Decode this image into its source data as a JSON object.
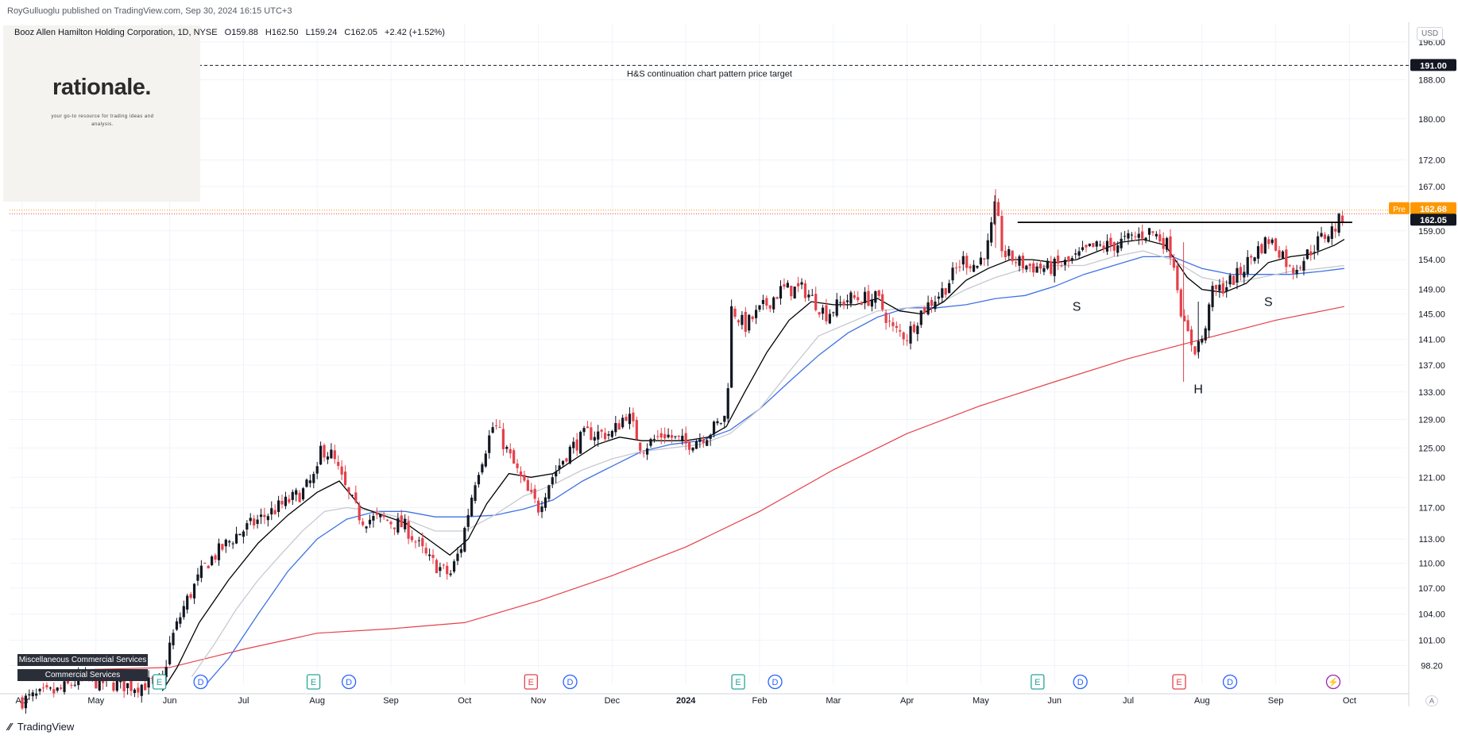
{
  "header": {
    "publisher": "RoyGulluoglu published on TradingView.com, Sep 30, 2024 16:15 UTC+3"
  },
  "legend": {
    "symbol": "Booz Allen Hamilton Holding Corporation, 1D, NYSE",
    "open": "O159.88",
    "high": "H162.50",
    "low": "L159.24",
    "close": "C162.05",
    "change": "+2.42 (+1.52%)"
  },
  "logo": {
    "brand": "rationale.",
    "tagline": "your go-to resource for trading ideas and analysis."
  },
  "currency_button": "USD",
  "auto_button": "A",
  "sector_tags": [
    "Miscellaneous Commercial Services",
    "Commercial Services"
  ],
  "footer": {
    "brand": "TradingView"
  },
  "chart_data": {
    "type": "candlestick",
    "title": "",
    "y_axis": {
      "ticks": [
        98.2,
        101.0,
        104.0,
        107.0,
        110.0,
        113.0,
        117.0,
        121.0,
        125.0,
        129.0,
        133.0,
        137.0,
        141.0,
        145.0,
        149.0,
        154.0,
        159.0,
        167.0,
        172.0,
        180.0,
        188.0,
        196.0
      ],
      "tick_labels": [
        "98.20",
        "101.00",
        "104.00",
        "107.00",
        "110.00",
        "113.00",
        "117.00",
        "121.00",
        "125.00",
        "129.00",
        "133.00",
        "137.00",
        "141.00",
        "145.00",
        "149.00",
        "154.00",
        "159.00",
        "167.00",
        "172.00",
        "180.00",
        "188.00",
        "196.00"
      ],
      "scale": "log"
    },
    "x_axis": {
      "labels": [
        "Apr",
        "May",
        "Jun",
        "Jul",
        "Aug",
        "Sep",
        "Oct",
        "Nov",
        "Dec",
        "2024",
        "Feb",
        "Mar",
        "Apr",
        "May",
        "Jun",
        "Jul",
        "Aug",
        "Sep",
        "Oct"
      ],
      "months_from_apr_2023": [
        0,
        1,
        2,
        3,
        4,
        5,
        6,
        7,
        8,
        9,
        10,
        11,
        12,
        13,
        14,
        15,
        16,
        17,
        18
      ]
    },
    "price_labels": {
      "current": "162.05",
      "premarket_label": "Pre",
      "premarket": "162.68",
      "target": "191.00"
    },
    "target_line": {
      "value": 191.0,
      "label": "H&S continuation chart pattern price target"
    },
    "neckline": {
      "value": 160.5,
      "from_month": 13.5,
      "to_month": 17.93
    },
    "pattern_labels": [
      {
        "text": "S",
        "month": 14.3,
        "price": 145.5
      },
      {
        "text": "H",
        "month": 15.95,
        "price": 132.8
      },
      {
        "text": "S",
        "month": 16.9,
        "price": 146.3
      }
    ],
    "close_path": [
      [
        0.0,
        94.5
      ],
      [
        0.5,
        95.5
      ],
      [
        0.8,
        96.8
      ],
      [
        1.0,
        96.5
      ],
      [
        1.5,
        96.0
      ],
      [
        1.9,
        96.5
      ],
      [
        2.0,
        100.5
      ],
      [
        2.2,
        105.0
      ],
      [
        2.5,
        110.0
      ],
      [
        2.9,
        113.5
      ],
      [
        3.3,
        116.0
      ],
      [
        3.8,
        119.0
      ],
      [
        4.0,
        121.5
      ],
      [
        4.05,
        125.0
      ],
      [
        4.2,
        124.0
      ],
      [
        4.4,
        119.0
      ],
      [
        4.6,
        115.5
      ],
      [
        4.9,
        115.5
      ],
      [
        5.2,
        114.5
      ],
      [
        5.5,
        110.5
      ],
      [
        5.8,
        108.5
      ],
      [
        5.95,
        112.0
      ],
      [
        6.15,
        121.0
      ],
      [
        6.4,
        128.5
      ],
      [
        6.6,
        124.0
      ],
      [
        6.85,
        119.0
      ],
      [
        7.0,
        117.0
      ],
      [
        7.15,
        120.5
      ],
      [
        7.4,
        124.5
      ],
      [
        7.65,
        127.0
      ],
      [
        8.0,
        127.0
      ],
      [
        8.2,
        130.0
      ],
      [
        8.4,
        125.0
      ],
      [
        8.7,
        127.0
      ],
      [
        9.0,
        125.5
      ],
      [
        9.3,
        127.0
      ],
      [
        9.55,
        129.5
      ],
      [
        9.62,
        146.0
      ],
      [
        9.8,
        143.0
      ],
      [
        10.0,
        145.5
      ],
      [
        10.3,
        149.0
      ],
      [
        10.6,
        149.0
      ],
      [
        10.9,
        145.0
      ],
      [
        11.2,
        147.5
      ],
      [
        11.6,
        147.5
      ],
      [
        11.8,
        142.5
      ],
      [
        12.0,
        141.5
      ],
      [
        12.2,
        145.5
      ],
      [
        12.5,
        149.0
      ],
      [
        12.75,
        154.0
      ],
      [
        12.95,
        153.0
      ],
      [
        13.1,
        156.5
      ],
      [
        13.2,
        163.5
      ],
      [
        13.3,
        155.0
      ],
      [
        13.6,
        153.0
      ],
      [
        13.9,
        152.5
      ],
      [
        14.2,
        153.5
      ],
      [
        14.5,
        156.0
      ],
      [
        14.8,
        156.5
      ],
      [
        15.1,
        158.0
      ],
      [
        15.3,
        159.0
      ],
      [
        15.5,
        157.0
      ],
      [
        15.6,
        155.0
      ],
      [
        15.75,
        143.0
      ],
      [
        15.9,
        139.5
      ],
      [
        16.05,
        142.0
      ],
      [
        16.1,
        148.0
      ],
      [
        16.3,
        149.5
      ],
      [
        16.5,
        151.5
      ],
      [
        16.7,
        155.0
      ],
      [
        16.9,
        157.5
      ],
      [
        17.1,
        155.0
      ],
      [
        17.2,
        152.0
      ],
      [
        17.4,
        154.5
      ],
      [
        17.6,
        157.5
      ],
      [
        17.8,
        159.5
      ],
      [
        17.93,
        162.05
      ]
    ],
    "series": [
      {
        "name": "",
        "color": "#000000",
        "points": [
          [
            1.9,
            95.5
          ],
          [
            2.1,
            98.0
          ],
          [
            2.4,
            103.0
          ],
          [
            2.8,
            108.0
          ],
          [
            3.2,
            112.5
          ],
          [
            3.6,
            116.0
          ],
          [
            4.0,
            119.0
          ],
          [
            4.3,
            120.5
          ],
          [
            4.6,
            117.0
          ],
          [
            4.9,
            116.0
          ],
          [
            5.2,
            115.0
          ],
          [
            5.5,
            113.0
          ],
          [
            5.8,
            111.0
          ],
          [
            6.05,
            113.0
          ],
          [
            6.3,
            117.5
          ],
          [
            6.6,
            121.5
          ],
          [
            6.9,
            121.0
          ],
          [
            7.2,
            121.5
          ],
          [
            7.5,
            123.5
          ],
          [
            7.8,
            125.5
          ],
          [
            8.1,
            126.5
          ],
          [
            8.4,
            126.0
          ],
          [
            8.7,
            126.0
          ],
          [
            9.0,
            126.0
          ],
          [
            9.3,
            126.5
          ],
          [
            9.55,
            128.0
          ],
          [
            9.8,
            133.0
          ],
          [
            10.1,
            139.0
          ],
          [
            10.4,
            144.0
          ],
          [
            10.7,
            147.0
          ],
          [
            11.0,
            146.5
          ],
          [
            11.3,
            146.5
          ],
          [
            11.6,
            147.5
          ],
          [
            11.9,
            145.5
          ],
          [
            12.2,
            145.0
          ],
          [
            12.5,
            147.0
          ],
          [
            12.8,
            150.5
          ],
          [
            13.1,
            152.5
          ],
          [
            13.4,
            154.0
          ],
          [
            13.7,
            154.0
          ],
          [
            14.0,
            153.5
          ],
          [
            14.3,
            154.0
          ],
          [
            14.6,
            155.5
          ],
          [
            14.9,
            157.0
          ],
          [
            15.2,
            157.5
          ],
          [
            15.5,
            156.5
          ],
          [
            15.8,
            151.0
          ],
          [
            16.0,
            149.0
          ],
          [
            16.3,
            148.5
          ],
          [
            16.6,
            150.0
          ],
          [
            16.9,
            153.5
          ],
          [
            17.2,
            154.5
          ],
          [
            17.5,
            155.0
          ],
          [
            17.8,
            156.5
          ],
          [
            17.93,
            157.5
          ]
        ]
      },
      {
        "name": "",
        "color": "#c7c9cf",
        "points": [
          [
            2.3,
            97.0
          ],
          [
            2.6,
            100.5
          ],
          [
            2.9,
            104.5
          ],
          [
            3.2,
            108.0
          ],
          [
            3.5,
            111.0
          ],
          [
            3.8,
            114.0
          ],
          [
            4.1,
            116.5
          ],
          [
            4.4,
            117.0
          ],
          [
            4.8,
            116.5
          ],
          [
            5.2,
            115.5
          ],
          [
            5.6,
            114.0
          ],
          [
            6.0,
            114.0
          ],
          [
            6.4,
            116.0
          ],
          [
            6.8,
            118.5
          ],
          [
            7.2,
            120.0
          ],
          [
            7.6,
            122.0
          ],
          [
            8.0,
            123.5
          ],
          [
            8.4,
            124.5
          ],
          [
            8.8,
            125.0
          ],
          [
            9.2,
            125.5
          ],
          [
            9.6,
            127.0
          ],
          [
            10.0,
            130.5
          ],
          [
            10.4,
            136.0
          ],
          [
            10.8,
            141.5
          ],
          [
            11.2,
            143.5
          ],
          [
            11.6,
            145.5
          ],
          [
            12.0,
            146.0
          ],
          [
            12.4,
            146.5
          ],
          [
            12.8,
            149.0
          ],
          [
            13.2,
            151.0
          ],
          [
            13.6,
            152.5
          ],
          [
            14.0,
            153.0
          ],
          [
            14.4,
            153.0
          ],
          [
            14.8,
            154.5
          ],
          [
            15.2,
            155.5
          ],
          [
            15.6,
            154.0
          ],
          [
            16.0,
            151.0
          ],
          [
            16.4,
            150.0
          ],
          [
            16.8,
            151.0
          ],
          [
            17.2,
            152.0
          ],
          [
            17.6,
            152.5
          ],
          [
            17.93,
            153.0
          ]
        ]
      },
      {
        "name": "",
        "color": "#3f72e5",
        "points": [
          [
            2.45,
            95.8
          ],
          [
            2.8,
            99.0
          ],
          [
            3.2,
            104.0
          ],
          [
            3.6,
            109.0
          ],
          [
            4.0,
            113.0
          ],
          [
            4.4,
            115.5
          ],
          [
            4.8,
            116.5
          ],
          [
            5.2,
            116.5
          ],
          [
            5.6,
            115.8
          ],
          [
            6.0,
            115.8
          ],
          [
            6.4,
            116.0
          ],
          [
            6.8,
            116.8
          ],
          [
            7.2,
            118.0
          ],
          [
            7.6,
            120.5
          ],
          [
            8.0,
            122.5
          ],
          [
            8.4,
            124.5
          ],
          [
            8.8,
            125.5
          ],
          [
            9.2,
            126.0
          ],
          [
            9.6,
            127.5
          ],
          [
            10.0,
            130.5
          ],
          [
            10.4,
            134.5
          ],
          [
            10.8,
            138.5
          ],
          [
            11.2,
            142.0
          ],
          [
            11.6,
            144.5
          ],
          [
            12.0,
            146.0
          ],
          [
            12.4,
            146.0
          ],
          [
            12.8,
            146.5
          ],
          [
            13.2,
            147.5
          ],
          [
            13.6,
            148.0
          ],
          [
            14.0,
            149.5
          ],
          [
            14.4,
            151.5
          ],
          [
            14.8,
            153.0
          ],
          [
            15.2,
            154.5
          ],
          [
            15.6,
            154.5
          ],
          [
            16.0,
            152.5
          ],
          [
            16.4,
            151.5
          ],
          [
            16.8,
            151.5
          ],
          [
            17.2,
            151.5
          ],
          [
            17.6,
            152.0
          ],
          [
            17.93,
            152.5
          ]
        ]
      },
      {
        "name": "",
        "color": "#e5404a",
        "points": [
          [
            0.0,
            97.5
          ],
          [
            1.0,
            97.8
          ],
          [
            2.0,
            98.0
          ],
          [
            3.0,
            100.0
          ],
          [
            4.0,
            101.8
          ],
          [
            5.0,
            102.3
          ],
          [
            6.0,
            103.0
          ],
          [
            7.0,
            105.5
          ],
          [
            8.0,
            108.5
          ],
          [
            9.0,
            112.0
          ],
          [
            10.0,
            116.5
          ],
          [
            11.0,
            122.0
          ],
          [
            12.0,
            127.0
          ],
          [
            13.0,
            131.0
          ],
          [
            14.0,
            134.5
          ],
          [
            15.0,
            138.0
          ],
          [
            16.0,
            141.0
          ],
          [
            17.0,
            144.0
          ],
          [
            17.93,
            146.2
          ]
        ]
      }
    ],
    "event_markers": [
      {
        "type": "E",
        "month": 1.86,
        "color": "#26a69a"
      },
      {
        "type": "D",
        "month": 2.42,
        "color": "#2962ff"
      },
      {
        "type": "E",
        "month": 3.95,
        "color": "#26a69a"
      },
      {
        "type": "D",
        "month": 4.43,
        "color": "#2962ff"
      },
      {
        "type": "E",
        "month": 6.9,
        "color": "#e5404a"
      },
      {
        "type": "D",
        "month": 7.43,
        "color": "#2962ff"
      },
      {
        "type": "E",
        "month": 9.71,
        "color": "#26a69a"
      },
      {
        "type": "D",
        "month": 10.21,
        "color": "#2962ff"
      },
      {
        "type": "E",
        "month": 13.77,
        "color": "#26a69a"
      },
      {
        "type": "D",
        "month": 14.35,
        "color": "#2962ff"
      },
      {
        "type": "E",
        "month": 15.69,
        "color": "#e5404a"
      },
      {
        "type": "D",
        "month": 16.38,
        "color": "#2962ff"
      },
      {
        "type": "⚡",
        "month": 17.78,
        "color": "#9c27b0"
      }
    ],
    "colors": {
      "up": "#131722",
      "down": "#e5404a",
      "grid": "#f0f3fa"
    },
    "grid": true
  }
}
